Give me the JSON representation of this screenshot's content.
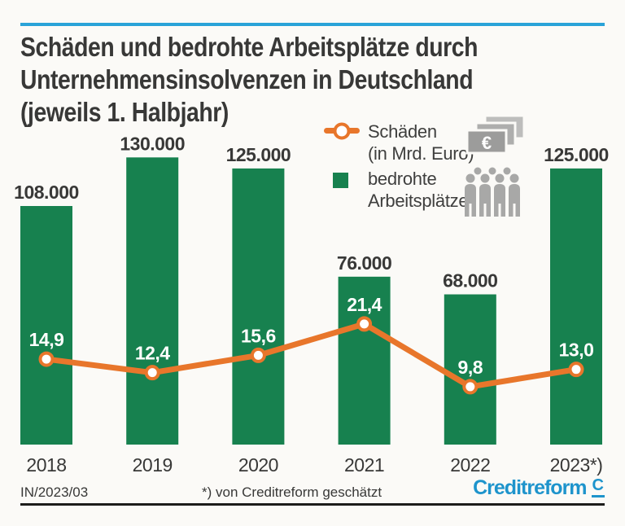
{
  "title": {
    "lines": [
      "Schäden und bedrohte Arbeitsplätze durch",
      "Unternehmensinsolvenzen in Deutschland",
      "(jeweils 1. Halbjahr)"
    ]
  },
  "legend": {
    "damages": {
      "line1": "Schäden",
      "line2": "(in Mrd. Euro)"
    },
    "jobs": {
      "line1": "bedrohte",
      "line2": "Arbeitsplätze"
    },
    "icons": {
      "damages_icon": "euro-banknotes-icon",
      "jobs_icon": "people-group-icon"
    }
  },
  "chart_data": {
    "type": "bar",
    "title": "Schäden und bedrohte Arbeitsplätze durch Unternehmensinsolvenzen in Deutschland (jeweils 1. Halbjahr)",
    "categories": [
      "2018",
      "2019",
      "2020",
      "2021",
      "2022",
      "2023*)"
    ],
    "series": [
      {
        "name": "bedrohte Arbeitsplätze",
        "type": "bar",
        "color": "#17814f",
        "values": [
          108000,
          130000,
          125000,
          76000,
          68000,
          125000
        ],
        "labels": [
          "108.000",
          "130.000",
          "125.000",
          "76.000",
          "68.000",
          "125.000"
        ]
      },
      {
        "name": "Schäden (in Mrd. Euro)",
        "type": "line",
        "color": "#e8762b",
        "marker": "circle-white-orange-ring",
        "values": [
          14.9,
          12.4,
          15.6,
          21.4,
          9.8,
          13.0
        ],
        "labels": [
          "14,9",
          "12,4",
          "15,6",
          "21,4",
          "9,8",
          "13,0"
        ]
      }
    ],
    "xlabel": "",
    "ylabel": "",
    "grid": false,
    "legend_position": "top-right",
    "annotations": [
      "*) von Creditreform geschätzt"
    ]
  },
  "footer": {
    "id": "IN/2023/03",
    "note": "*) von Creditreform geschätzt",
    "logo_text": "Creditreform",
    "logo_mark": "C"
  },
  "colors": {
    "background": "#fbfaf7",
    "accent_top_line": "#2aa3d8",
    "bar_green": "#17814f",
    "line_orange": "#e8762b",
    "logo_blue": "#1e94cc",
    "text_dark": "#383837",
    "icon_gray": "#a8a8a7"
  }
}
